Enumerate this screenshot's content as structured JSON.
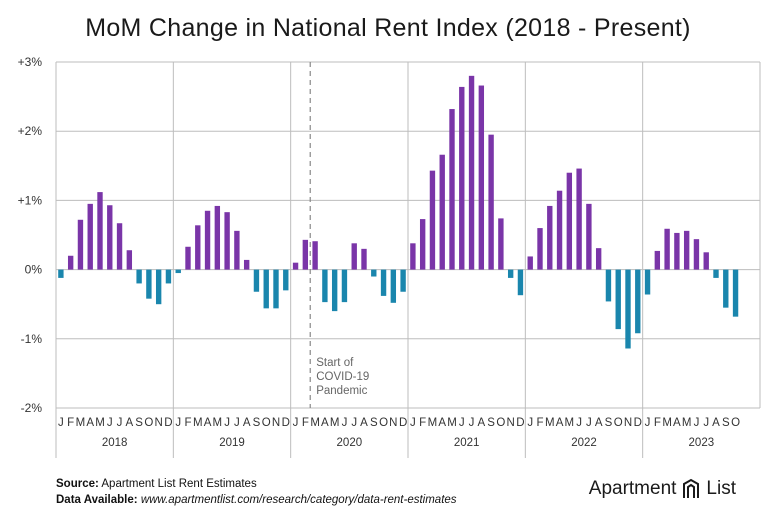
{
  "title": "MoM Change in National Rent Index (2018 - Present)",
  "footer": {
    "source_label": "Source:",
    "source_text": "Apartment List Rent Estimates",
    "data_label": "Data Available:",
    "data_text": "www.apartmentlist.com/research/category/data-rent-estimates"
  },
  "logo": {
    "word1": "Apartment",
    "word2": "List",
    "icon": "apartment-list-logo-icon"
  },
  "colors": {
    "positive": "#7a35a8",
    "negative": "#1a86ad",
    "grid": "#bdbdbd",
    "axis_text": "#333333"
  },
  "chart_data": {
    "type": "bar",
    "ylim": [
      -2,
      3
    ],
    "yticks": [
      "-2%",
      "-1%",
      "0%",
      "+1%",
      "+2%",
      "+3%"
    ],
    "ytick_values": [
      -2,
      -1,
      0,
      1,
      2,
      3
    ],
    "month_labels": [
      "J",
      "F",
      "M",
      "A",
      "M",
      "J",
      "J",
      "A",
      "S",
      "O",
      "N",
      "D"
    ],
    "years": [
      "2018",
      "2019",
      "2020",
      "2021",
      "2022",
      "2023"
    ],
    "annotation": {
      "text": [
        "Start of",
        "COVID-19",
        "Pandemic"
      ],
      "at_index": 26
    },
    "values": [
      -0.12,
      0.2,
      0.72,
      0.95,
      1.12,
      0.93,
      0.67,
      0.28,
      -0.2,
      -0.42,
      -0.5,
      -0.2,
      -0.05,
      0.33,
      0.64,
      0.85,
      0.92,
      0.83,
      0.56,
      0.14,
      -0.32,
      -0.56,
      -0.56,
      -0.3,
      0.1,
      0.43,
      0.41,
      -0.47,
      -0.6,
      -0.47,
      0.38,
      0.3,
      -0.1,
      -0.38,
      -0.48,
      -0.32,
      0.38,
      0.73,
      1.43,
      1.66,
      2.32,
      2.64,
      2.8,
      2.66,
      1.95,
      0.74,
      -0.12,
      -0.37,
      0.19,
      0.6,
      0.92,
      1.14,
      1.4,
      1.46,
      0.95,
      0.31,
      -0.46,
      -0.86,
      -1.14,
      -0.92,
      -0.36,
      0.27,
      0.59,
      0.53,
      0.56,
      0.44,
      0.25,
      -0.12,
      -0.55,
      -0.68
    ]
  }
}
